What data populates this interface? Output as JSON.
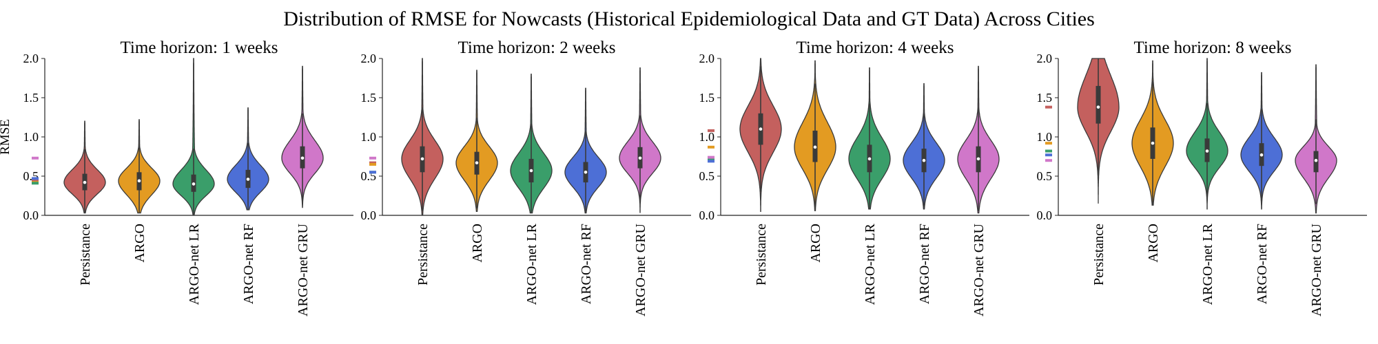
{
  "title": "Distribution of RMSE for Nowcasts (Historical Epidemiological Data and GT Data) Across Cities",
  "colors": {
    "Persistance": "#c4605e",
    "ARGO": "#e39b22",
    "ARGO-net LR": "#3a9e6a",
    "ARGO-net RF": "#4d6fd6",
    "ARGO-net GRU": "#d077c9"
  },
  "chart_data": [
    {
      "type": "violin",
      "title": "Time horizon: 1 weeks",
      "ylabel": "RMSE",
      "ylim": [
        0,
        2.0
      ],
      "yticks": [
        "0.0",
        "0.5",
        "1.0",
        "1.5",
        "2.0"
      ],
      "categories": [
        "Persistance",
        "ARGO",
        "ARGO-net LR",
        "ARGO-net RF",
        "ARGO-net GRU"
      ],
      "series": [
        {
          "name": "Persistance",
          "min": 0.03,
          "q1": 0.32,
          "median": 0.42,
          "q3": 0.53,
          "max": 1.2,
          "mean": 0.45
        },
        {
          "name": "ARGO",
          "min": 0.03,
          "q1": 0.32,
          "median": 0.44,
          "q3": 0.55,
          "max": 1.22,
          "mean": 0.42
        },
        {
          "name": "ARGO-net LR",
          "min": 0.0,
          "q1": 0.3,
          "median": 0.4,
          "q3": 0.52,
          "max": 2.0,
          "mean": 0.41
        },
        {
          "name": "ARGO-net RF",
          "min": 0.07,
          "q1": 0.35,
          "median": 0.46,
          "q3": 0.58,
          "max": 1.37,
          "mean": 0.47
        },
        {
          "name": "ARGO-net GRU",
          "min": 0.1,
          "q1": 0.6,
          "median": 0.73,
          "q3": 0.88,
          "max": 1.9,
          "mean": 0.73
        }
      ]
    },
    {
      "type": "violin",
      "title": "Time horizon: 2 weeks",
      "ylabel": "",
      "ylim": [
        0,
        2.0
      ],
      "yticks": [
        "0.0",
        "0.5",
        "1.0",
        "1.5",
        "2.0"
      ],
      "categories": [
        "Persistance",
        "ARGO",
        "ARGO-net LR",
        "ARGO-net RF",
        "ARGO-net GRU"
      ],
      "series": [
        {
          "name": "Persistance",
          "min": 0.0,
          "q1": 0.55,
          "median": 0.72,
          "q3": 0.88,
          "max": 2.0,
          "mean": 0.67
        },
        {
          "name": "ARGO",
          "min": 0.05,
          "q1": 0.52,
          "median": 0.67,
          "q3": 0.81,
          "max": 1.85,
          "mean": 0.65
        },
        {
          "name": "ARGO-net LR",
          "min": 0.03,
          "q1": 0.42,
          "median": 0.57,
          "q3": 0.72,
          "max": 1.8,
          "mean": 0.55
        },
        {
          "name": "ARGO-net RF",
          "min": 0.03,
          "q1": 0.42,
          "median": 0.55,
          "q3": 0.68,
          "max": 1.62,
          "mean": 0.55
        },
        {
          "name": "ARGO-net GRU",
          "min": 0.03,
          "q1": 0.6,
          "median": 0.73,
          "q3": 0.87,
          "max": 1.88,
          "mean": 0.73
        }
      ]
    },
    {
      "type": "violin",
      "title": "Time horizon: 4 weeks",
      "ylabel": "",
      "ylim": [
        0,
        2.0
      ],
      "yticks": [
        "0.0",
        "0.5",
        "1.0",
        "1.5",
        "2.0"
      ],
      "categories": [
        "Persistance",
        "ARGO",
        "ARGO-net LR",
        "ARGO-net RF",
        "ARGO-net GRU"
      ],
      "series": [
        {
          "name": "Persistance",
          "min": 0.05,
          "q1": 0.9,
          "median": 1.1,
          "q3": 1.3,
          "max": 2.0,
          "mean": 1.08
        },
        {
          "name": "ARGO",
          "min": 0.06,
          "q1": 0.68,
          "median": 0.87,
          "q3": 1.08,
          "max": 1.97,
          "mean": 0.87
        },
        {
          "name": "ARGO-net LR",
          "min": 0.08,
          "q1": 0.55,
          "median": 0.72,
          "q3": 0.9,
          "max": 1.88,
          "mean": 0.72
        },
        {
          "name": "ARGO-net RF",
          "min": 0.08,
          "q1": 0.55,
          "median": 0.7,
          "q3": 0.85,
          "max": 1.68,
          "mean": 0.69
        },
        {
          "name": "ARGO-net GRU",
          "min": 0.03,
          "q1": 0.55,
          "median": 0.72,
          "q3": 0.88,
          "max": 1.9,
          "mean": 0.74
        }
      ]
    },
    {
      "type": "violin",
      "title": "Time horizon: 8 weeks",
      "ylabel": "",
      "ylim": [
        0,
        2.0
      ],
      "yticks": [
        "0.0",
        "0.5",
        "1.0",
        "1.5",
        "2.0"
      ],
      "categories": [
        "Persistance",
        "ARGO",
        "ARGO-net LR",
        "ARGO-net RF",
        "ARGO-net GRU"
      ],
      "series": [
        {
          "name": "Persistance",
          "min": 0.15,
          "q1": 1.17,
          "median": 1.38,
          "q3": 1.65,
          "max": 2.0,
          "mean": 1.38
        },
        {
          "name": "ARGO",
          "min": 0.13,
          "q1": 0.72,
          "median": 0.92,
          "q3": 1.12,
          "max": 1.97,
          "mean": 0.92
        },
        {
          "name": "ARGO-net LR",
          "min": 0.08,
          "q1": 0.68,
          "median": 0.82,
          "q3": 0.98,
          "max": 2.0,
          "mean": 0.82
        },
        {
          "name": "ARGO-net RF",
          "min": 0.08,
          "q1": 0.63,
          "median": 0.77,
          "q3": 0.92,
          "max": 1.82,
          "mean": 0.77
        },
        {
          "name": "ARGO-net GRU",
          "min": 0.03,
          "q1": 0.55,
          "median": 0.7,
          "q3": 0.82,
          "max": 1.92,
          "mean": 0.7
        }
      ]
    }
  ]
}
